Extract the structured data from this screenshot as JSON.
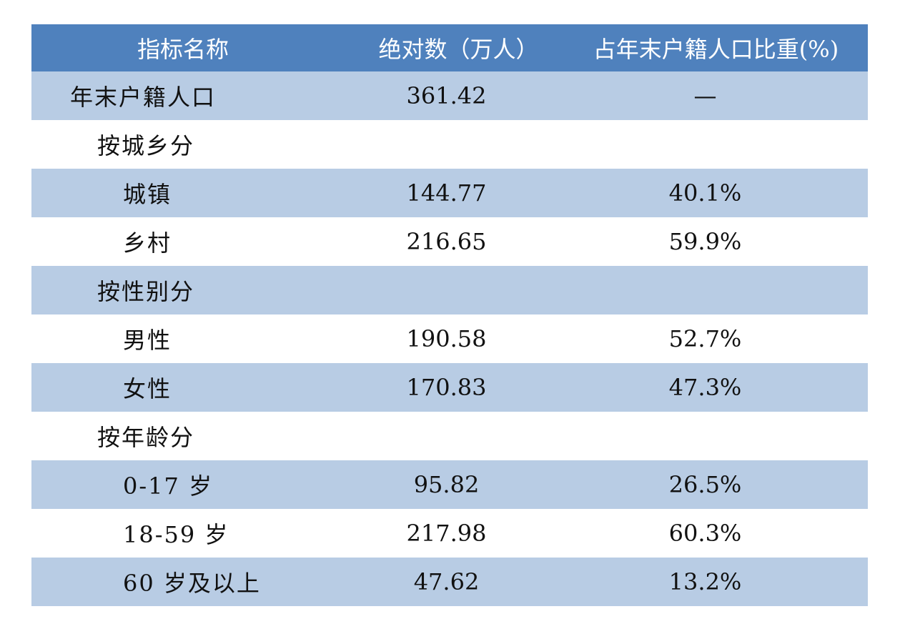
{
  "table": {
    "headers": {
      "name": "指标名称",
      "absolute": "绝对数（万人）",
      "share": "占年末户籍人口比重(%)"
    },
    "rows": [
      {
        "name": "年末户籍人口",
        "absolute": "361.42",
        "share": "—"
      },
      {
        "name": "按城乡分",
        "absolute": "",
        "share": ""
      },
      {
        "name": "城镇",
        "absolute": "144.77",
        "share": "40.1%"
      },
      {
        "name": "乡村",
        "absolute": "216.65",
        "share": "59.9%"
      },
      {
        "name": "按性别分",
        "absolute": "",
        "share": ""
      },
      {
        "name": "男性",
        "absolute": "190.58",
        "share": "52.7%"
      },
      {
        "name": "女性",
        "absolute": "170.83",
        "share": "47.3%"
      },
      {
        "name": "按年龄分",
        "absolute": "",
        "share": ""
      },
      {
        "name": "0-17 岁",
        "absolute": "95.82",
        "share": "26.5%"
      },
      {
        "name": "18-59 岁",
        "absolute": "217.98",
        "share": "60.3%"
      },
      {
        "name": "60 岁及以上",
        "absolute": "47.62",
        "share": "13.2%"
      }
    ]
  },
  "colors": {
    "header_bg": "#4f81bd",
    "header_text": "#ffffff",
    "band_bg": "#b8cce4",
    "plain_bg": "#ffffff",
    "text": "#111111"
  }
}
